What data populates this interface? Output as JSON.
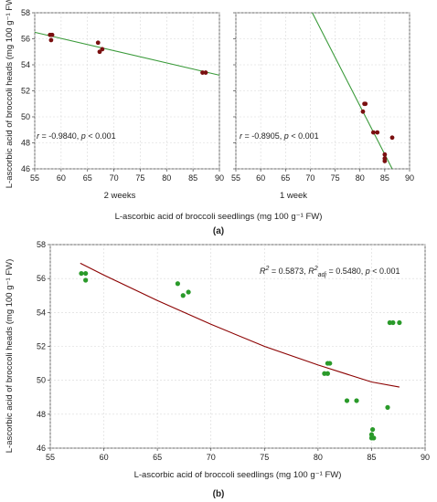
{
  "chart_data": [
    {
      "type": "scatter",
      "panel": "a-left",
      "xlabel_shared": "L-ascorbic acid of broccoli seedlings (mg 100 g⁻¹ FW)",
      "ylabel_shared": "L-ascorbic acid of broccoli heads (mg 100 g⁻¹ FW)",
      "subtitle": "2 weeks",
      "xlim": [
        55,
        90
      ],
      "ylim": [
        46,
        58
      ],
      "xticks": [
        55,
        60,
        65,
        70,
        75,
        80,
        85,
        90
      ],
      "yticks": [
        46,
        48,
        50,
        52,
        54,
        56,
        58
      ],
      "annotation": {
        "r_label": "r",
        "r_value": " = -0.9840, ",
        "p_label": "p",
        "p_value": " < 0.001"
      },
      "points": [
        {
          "x": 57.9,
          "y": 56.3
        },
        {
          "x": 58.3,
          "y": 56.3
        },
        {
          "x": 58.1,
          "y": 55.9
        },
        {
          "x": 67.0,
          "y": 55.7
        },
        {
          "x": 67.3,
          "y": 55.0
        },
        {
          "x": 67.8,
          "y": 55.2
        },
        {
          "x": 86.8,
          "y": 53.4
        },
        {
          "x": 87.4,
          "y": 53.4
        }
      ],
      "fit_line": {
        "x": [
          55,
          90
        ],
        "y": [
          56.5,
          53.2
        ]
      },
      "point_color": "#7a1010",
      "line_color": "#3a9a3a"
    },
    {
      "type": "scatter",
      "panel": "a-right",
      "subtitle": "1 week",
      "xlim": [
        55,
        90
      ],
      "ylim": [
        46,
        58
      ],
      "xticks": [
        55,
        60,
        65,
        70,
        75,
        80,
        85,
        90
      ],
      "annotation": {
        "r_label": "r",
        "r_value": " = -0.8905, ",
        "p_label": "p",
        "p_value": " < 0.001"
      },
      "points": [
        {
          "x": 80.6,
          "y": 50.4
        },
        {
          "x": 80.9,
          "y": 51.0
        },
        {
          "x": 81.1,
          "y": 51.0
        },
        {
          "x": 82.7,
          "y": 48.8
        },
        {
          "x": 83.5,
          "y": 48.8
        },
        {
          "x": 85.0,
          "y": 47.1
        },
        {
          "x": 85.0,
          "y": 46.8
        },
        {
          "x": 85.0,
          "y": 46.6
        },
        {
          "x": 86.5,
          "y": 48.4
        }
      ],
      "fit_line": {
        "x": [
          70.4,
          86.5
        ],
        "y": [
          58,
          46
        ]
      },
      "point_color": "#7a1010",
      "line_color": "#3a9a3a"
    },
    {
      "type": "scatter",
      "panel": "b",
      "xlabel": "L-ascorbic acid of broccoli seedlings (mg 100 g⁻¹ FW)",
      "ylabel": "L-ascorbic acid of broccoli heads (mg 100 g⁻¹ FW)",
      "xlim": [
        55,
        90
      ],
      "ylim": [
        46,
        58
      ],
      "xticks": [
        55,
        60,
        65,
        70,
        75,
        80,
        85,
        90
      ],
      "yticks": [
        46,
        48,
        50,
        52,
        54,
        56,
        58
      ],
      "annotation": {
        "r2_value": " = 0.5873, ",
        "r2adj_value": " = 0.5480, ",
        "p_label": "p",
        "p_value": " < 0.001"
      },
      "points": [
        {
          "x": 57.9,
          "y": 56.3
        },
        {
          "x": 58.3,
          "y": 56.3
        },
        {
          "x": 58.3,
          "y": 55.9
        },
        {
          "x": 66.9,
          "y": 55.7
        },
        {
          "x": 67.4,
          "y": 55.0
        },
        {
          "x": 67.9,
          "y": 55.2
        },
        {
          "x": 80.6,
          "y": 50.4
        },
        {
          "x": 80.9,
          "y": 51.0
        },
        {
          "x": 81.1,
          "y": 51.0
        },
        {
          "x": 80.9,
          "y": 50.4
        },
        {
          "x": 82.7,
          "y": 48.8
        },
        {
          "x": 83.6,
          "y": 48.8
        },
        {
          "x": 85.1,
          "y": 47.1
        },
        {
          "x": 85.0,
          "y": 46.8
        },
        {
          "x": 85.0,
          "y": 46.6
        },
        {
          "x": 85.2,
          "y": 46.6
        },
        {
          "x": 86.5,
          "y": 48.4
        },
        {
          "x": 86.7,
          "y": 53.4
        },
        {
          "x": 87.0,
          "y": 53.4
        },
        {
          "x": 87.6,
          "y": 53.4
        }
      ],
      "fit_curve": {
        "x": [
          57.8,
          60,
          65,
          70,
          75,
          80,
          85,
          87.6
        ],
        "y": [
          56.9,
          56.2,
          54.7,
          53.3,
          52.0,
          50.9,
          49.9,
          49.6
        ]
      },
      "point_color": "#2a9a2a",
      "line_color": "#8b0000"
    }
  ],
  "captions": {
    "a": "(a)",
    "b": "(b)"
  }
}
